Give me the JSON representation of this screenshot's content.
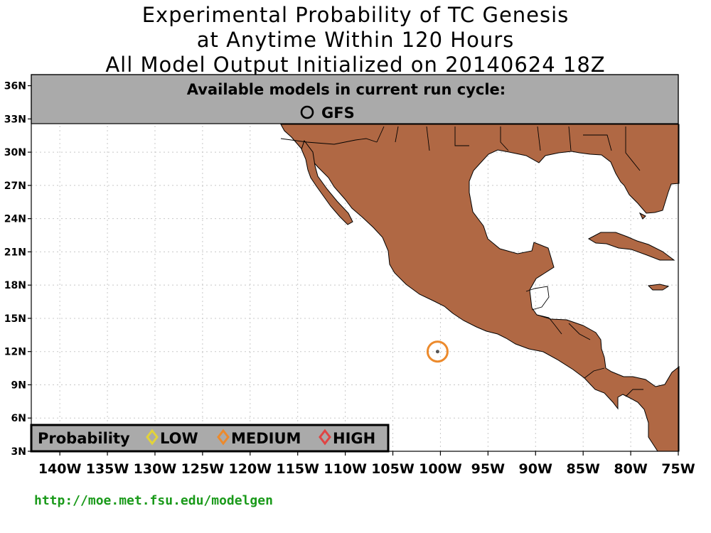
{
  "title": {
    "line1": "Experimental Probability of TC Genesis",
    "line2": "at Anytime Within 120 Hours",
    "line3": "All Model Output Initialized on 20140624 18Z"
  },
  "banner": {
    "heading": "Available models in current run cycle:",
    "model": "GFS",
    "model_icon": "circle-icon"
  },
  "lat_ticks": [
    "36N",
    "33N",
    "30N",
    "27N",
    "24N",
    "21N",
    "18N",
    "15N",
    "12N",
    "9N",
    "6N",
    "3N"
  ],
  "lon_ticks": [
    "140W",
    "135W",
    "130W",
    "125W",
    "120W",
    "115W",
    "110W",
    "105W",
    "100W",
    "95W",
    "90W",
    "85W",
    "80W",
    "75W"
  ],
  "legend": {
    "title": "Probability",
    "items": [
      {
        "label": "LOW",
        "color": "#e2d33a",
        "icon": "diamond-icon"
      },
      {
        "label": "MEDIUM",
        "color": "#ec8a2c",
        "icon": "diamond-icon"
      },
      {
        "label": "HIGH",
        "color": "#e04444",
        "icon": "diamond-icon"
      }
    ]
  },
  "markers": [
    {
      "lat": 12,
      "lon": -100.3,
      "probability": "MEDIUM",
      "color": "#ec8a2c"
    }
  ],
  "colors": {
    "land": "#b06844",
    "banner": "#aaaaaa",
    "grid": "#c8c8c8"
  },
  "footer": {
    "url": "http://moe.met.fsu.edu/modelgen"
  }
}
